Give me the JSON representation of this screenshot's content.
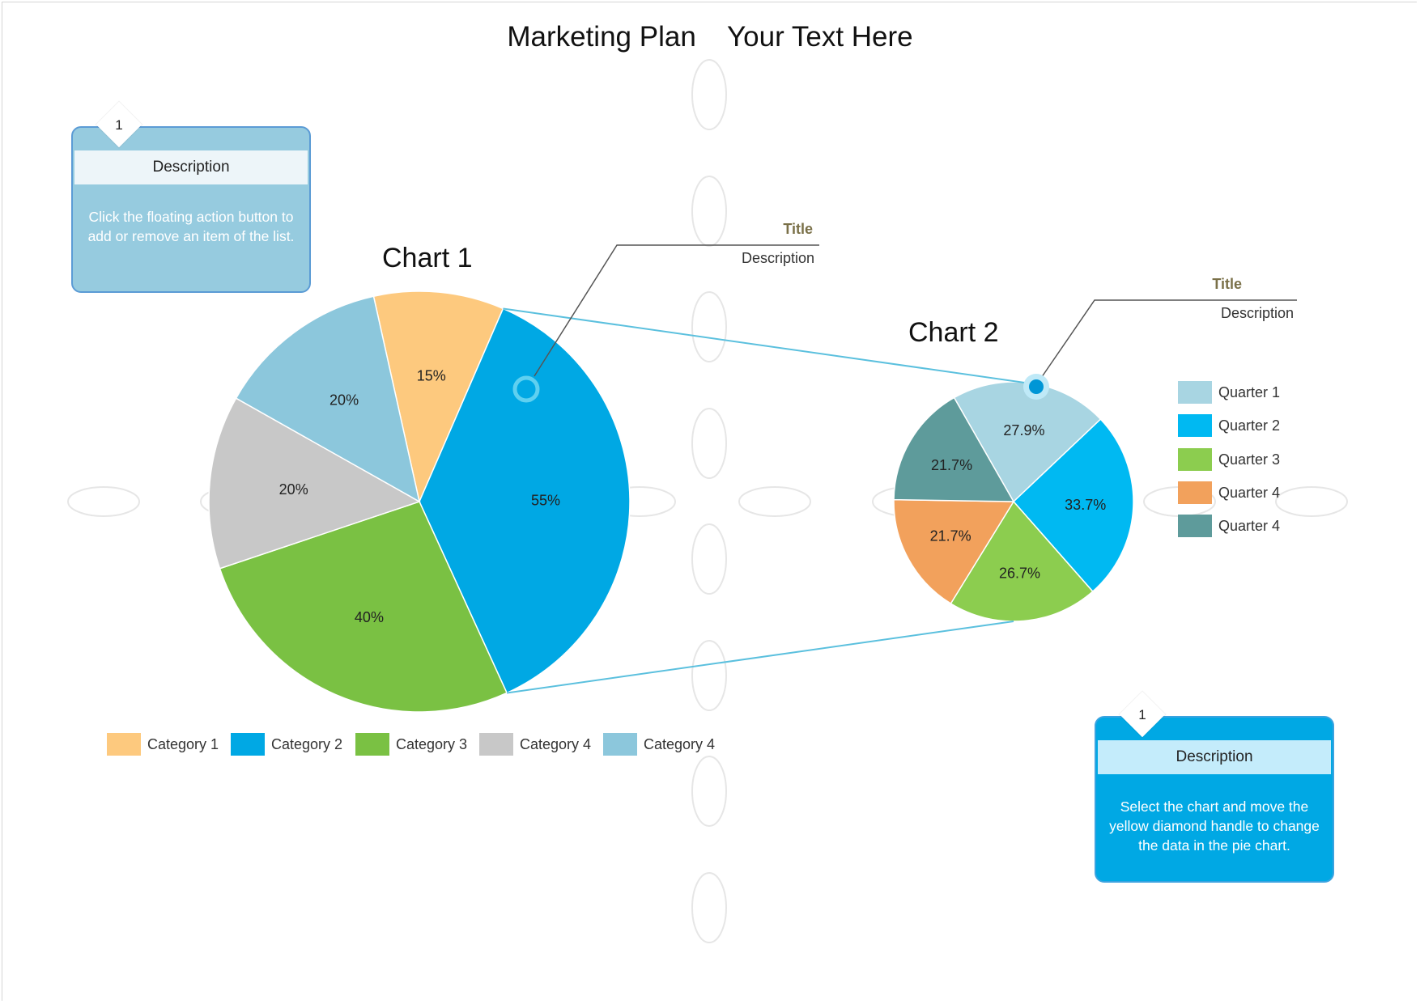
{
  "title": "Marketing Plan    Your Text Here",
  "chart_data": [
    {
      "type": "pie",
      "title": "Chart 1",
      "slices": [
        {
          "label": "Category 1",
          "value": 15,
          "display": "15%",
          "color": "#fdc97e"
        },
        {
          "label": "Category 2",
          "value": 55,
          "display": "55%",
          "color": "#00a8e4"
        },
        {
          "label": "Category 3",
          "value": 40,
          "display": "40%",
          "color": "#7ac143"
        },
        {
          "label": "Category 4",
          "value": 20,
          "display": "20%",
          "color": "#c8c8c8"
        },
        {
          "label": "Category 4",
          "value": 20,
          "display": "20%",
          "color": "#8cc7dc"
        }
      ],
      "legend": [
        "Category 1",
        "Category 2",
        "Category 3",
        "Category 4",
        "Category 4"
      ],
      "legend_position": "bottom"
    },
    {
      "type": "pie",
      "title": "Chart 2",
      "slices": [
        {
          "label": "Quarter 1",
          "value": 27.9,
          "display": "27.9%",
          "color": "#a8d5e2"
        },
        {
          "label": "Quarter 2",
          "value": 33.7,
          "display": "33.7%",
          "color": "#00b9f2"
        },
        {
          "label": "Quarter 3",
          "value": 26.7,
          "display": "26.7%",
          "color": "#8ccd4f"
        },
        {
          "label": "Quarter 4",
          "value": 21.7,
          "display": "21.7%",
          "color": "#f2a15c"
        },
        {
          "label": "Quarter 4",
          "value": 21.7,
          "display": "21.7%",
          "color": "#5e9b9b"
        }
      ],
      "legend": [
        "Quarter 1",
        "Quarter 2",
        "Quarter 3",
        "Quarter 4",
        "Quarter 4"
      ],
      "legend_position": "right"
    }
  ],
  "callouts": [
    {
      "title": "Title",
      "description": "Description"
    },
    {
      "title": "Title",
      "description": "Description"
    }
  ],
  "notes": [
    {
      "badge": "1",
      "heading": "Description",
      "body": "Click the floating action button to add or remove an item of the list.",
      "color": "#96cbdf",
      "band_color": "#edf5f9",
      "border_color": "#5b9bd5"
    },
    {
      "badge": "1",
      "heading": "Description",
      "body": "Select the chart and move the yellow diamond handle to change the data in the pie chart.",
      "color": "#00a8e4",
      "band_color": "#c4ecfb",
      "border_color": "#3aa3e0"
    }
  ],
  "colors": {
    "connector": "#5bc0de",
    "leader": "#555555"
  }
}
